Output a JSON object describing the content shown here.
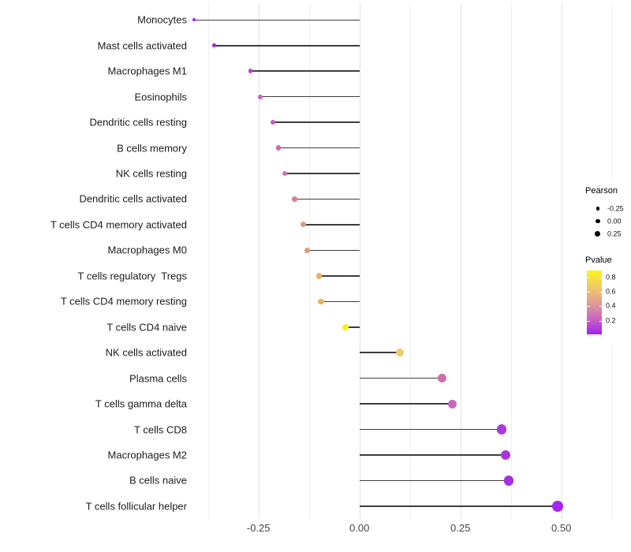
{
  "chart_data": {
    "type": "scatter",
    "subtype": "horizontal-lollipop",
    "title": "",
    "xlabel": "",
    "ylabel": "",
    "grid": "vertical-only",
    "xlim": [
      -0.42,
      0.55
    ],
    "x_tick_labels": [
      "-0.25",
      "0.00",
      "0.25",
      "0.50"
    ],
    "x_major_ticks": [
      -0.25,
      0,
      0.25,
      0.5
    ],
    "x_minor_ticks": [
      -0.375,
      -0.125,
      0.125,
      0.375,
      0.625
    ],
    "categories": [
      "Monocytes",
      "Mast cells activated",
      "Macrophages M1",
      "Eosinophils",
      "Dendritic cells resting",
      "B cells memory",
      "NK cells resting",
      "Dendritic cells activated",
      "T cells CD4 memory activated",
      "Macrophages M0",
      "T cells regulatory  Tregs",
      "T cells CD4 memory resting",
      "T cells CD4 naive",
      "NK cells activated",
      "Plasma cells",
      "T cells gamma delta",
      "T cells CD8",
      "Macrophages M2",
      "B cells naive",
      "T cells follicular helper"
    ],
    "series": [
      {
        "name": "Pearson",
        "values": [
          -0.41,
          -0.36,
          -0.27,
          -0.245,
          -0.215,
          -0.2,
          -0.185,
          -0.16,
          -0.14,
          -0.13,
          -0.1,
          -0.095,
          -0.035,
          0.1,
          0.205,
          0.23,
          0.352,
          0.362,
          0.37,
          0.49
        ]
      }
    ],
    "point_colors": [
      "#A222EE",
      "#A52BE9",
      "#B747D4",
      "#C763C3",
      "#C25CC9",
      "#CD68B5",
      "#D173AB",
      "#D88191",
      "#E0997E",
      "#E29C7B",
      "#EBB169",
      "#EBB368",
      "#F7F312",
      "#F0C86E",
      "#CE6FAF",
      "#C964BC",
      "#AC38DF",
      "#AA35E1",
      "#A72FE6",
      "#A326EC"
    ],
    "stem_color": "#3D3D3D",
    "legend_position": "right",
    "legends": {
      "size": {
        "title": "Pearson",
        "labels": [
          "-0.25",
          "0.00",
          "0.25"
        ],
        "dot_color": "#000000"
      },
      "color": {
        "title": "Pvalue",
        "tick_labels": [
          "0.8",
          "0.6",
          "0.4",
          "0.2"
        ],
        "gradient_stops_top_to_bottom": [
          "#FBF51B",
          "#EFCB66",
          "#E19E95",
          "#C968C0",
          "#A322EE"
        ]
      }
    }
  },
  "colors": {
    "background": "#FFFFFF",
    "grid_major": "#E2E2E2",
    "grid_minor": "#F0F0F0",
    "axis_text": "#454545",
    "category_text": "#1C1C1C"
  }
}
